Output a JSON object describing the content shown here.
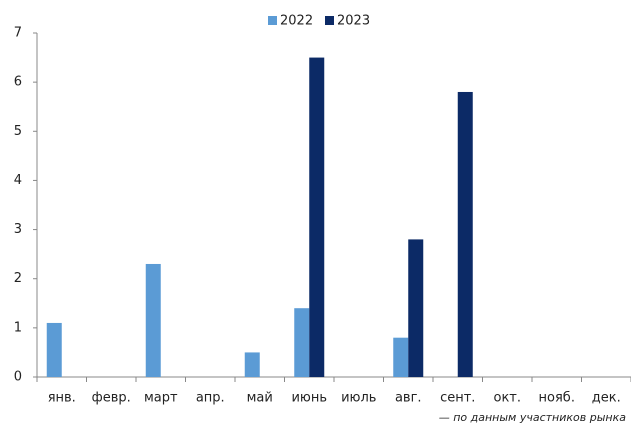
{
  "chart_data": {
    "type": "bar",
    "categories": [
      "янв.",
      "февр.",
      "март",
      "апр.",
      "май",
      "июнь",
      "июль",
      "авг.",
      "сент.",
      "окт.",
      "нояб.",
      "дек."
    ],
    "series": [
      {
        "name": "2022",
        "color": "#5b9bd5",
        "values": [
          1.1,
          0,
          2.3,
          0,
          0.5,
          1.4,
          0,
          0.8,
          0,
          0,
          0,
          0
        ]
      },
      {
        "name": "2023",
        "color": "#0c2a66",
        "values": [
          0,
          0,
          0,
          0,
          0,
          6.5,
          0,
          2.8,
          5.8,
          0,
          0,
          0
        ]
      }
    ],
    "ylim": [
      0,
      7
    ],
    "yticks": [
      0,
      1,
      2,
      3,
      4,
      5,
      6,
      7
    ],
    "legend": "top",
    "source": "— по данным участников рынка"
  }
}
